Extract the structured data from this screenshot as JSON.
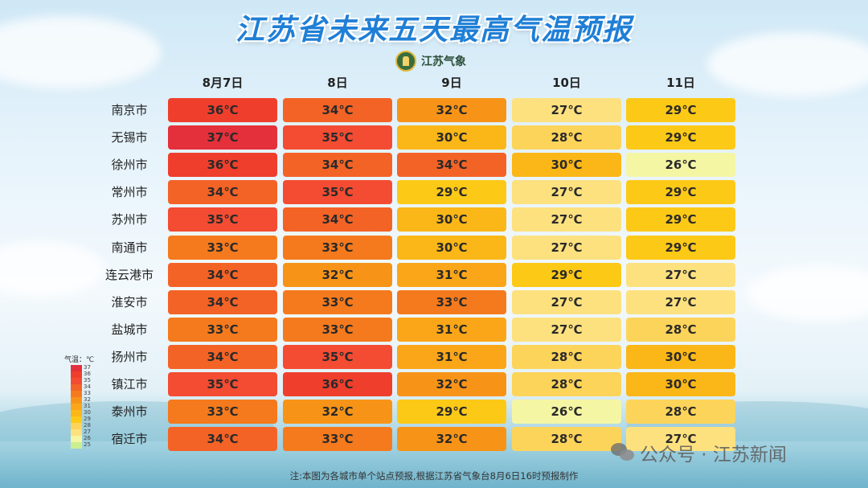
{
  "title": "江苏省未来五天最高气温预报",
  "logo_text": "江苏气象",
  "dates": [
    "8月7日",
    "8日",
    "9日",
    "10日",
    "11日"
  ],
  "unit": "℃",
  "cities": [
    {
      "name": "南京市",
      "temps": [
        36,
        34,
        32,
        27,
        29
      ]
    },
    {
      "name": "无锡市",
      "temps": [
        37,
        35,
        30,
        28,
        29
      ]
    },
    {
      "name": "徐州市",
      "temps": [
        36,
        34,
        34,
        30,
        26
      ]
    },
    {
      "name": "常州市",
      "temps": [
        34,
        35,
        29,
        27,
        29
      ]
    },
    {
      "name": "苏州市",
      "temps": [
        35,
        34,
        30,
        27,
        29
      ]
    },
    {
      "name": "南通市",
      "temps": [
        33,
        33,
        30,
        27,
        29
      ]
    },
    {
      "name": "连云港市",
      "temps": [
        34,
        32,
        31,
        29,
        27
      ]
    },
    {
      "name": "淮安市",
      "temps": [
        34,
        33,
        33,
        27,
        27
      ]
    },
    {
      "name": "盐城市",
      "temps": [
        33,
        33,
        31,
        27,
        28
      ]
    },
    {
      "name": "扬州市",
      "temps": [
        34,
        35,
        31,
        28,
        30
      ]
    },
    {
      "name": "镇江市",
      "temps": [
        35,
        36,
        32,
        28,
        30
      ]
    },
    {
      "name": "泰州市",
      "temps": [
        33,
        32,
        29,
        26,
        28
      ]
    },
    {
      "name": "宿迁市",
      "temps": [
        34,
        33,
        32,
        28,
        27
      ]
    }
  ],
  "legend": {
    "title": "气温：℃",
    "levels": [
      {
        "value": 37,
        "color": "#e4303b"
      },
      {
        "value": 36,
        "color": "#ef3f2c"
      },
      {
        "value": 35,
        "color": "#f34c32"
      },
      {
        "value": 34,
        "color": "#f46326"
      },
      {
        "value": 33,
        "color": "#f57a1d"
      },
      {
        "value": 32,
        "color": "#f79418"
      },
      {
        "value": 31,
        "color": "#faa618"
      },
      {
        "value": 30,
        "color": "#fbb717"
      },
      {
        "value": 29,
        "color": "#fdc917"
      },
      {
        "value": 28,
        "color": "#fdd45a"
      },
      {
        "value": 27,
        "color": "#fde17f"
      },
      {
        "value": 26,
        "color": "#f4f6a4"
      },
      {
        "value": 25,
        "color": "#cbee90"
      }
    ]
  },
  "footer_note": "注:本图为各城市单个站点预报,根据江苏省气象台8月6日16时预报制作",
  "watermark": "公众号 · 江苏新闻"
}
